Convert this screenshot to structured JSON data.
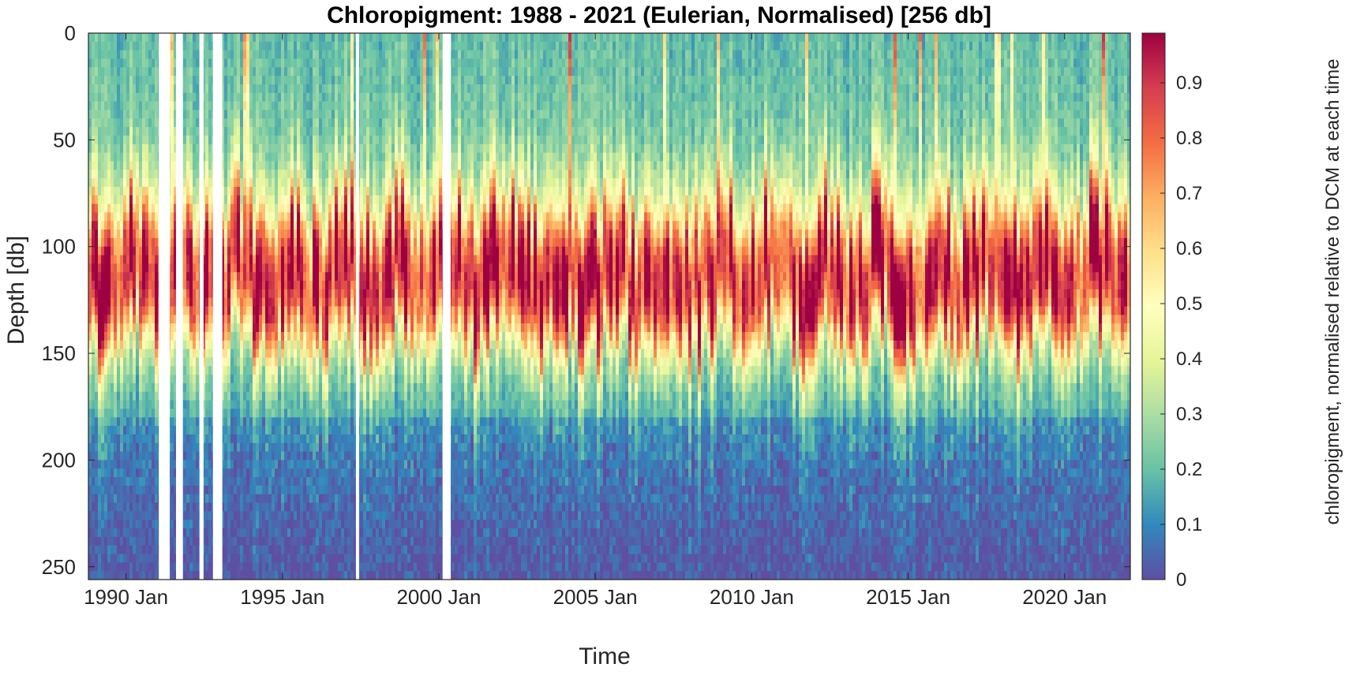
{
  "chart_data": {
    "type": "heatmap",
    "title": "Chloropigment: 1988 - 2021 (Eulerian, Normalised) [256 db]",
    "xlabel": "Time",
    "ylabel": "Depth [db]",
    "x_ticks": [
      "1990 Jan",
      "1995 Jan",
      "2000 Jan",
      "2005 Jan",
      "2010 Jan",
      "2015 Jan",
      "2020 Jan"
    ],
    "x_tick_years": [
      1990,
      1995,
      2000,
      2005,
      2010,
      2015,
      2020
    ],
    "xlim": [
      1988.8,
      2022.1
    ],
    "y_ticks": [
      0,
      50,
      100,
      150,
      200,
      250
    ],
    "ylim": [
      0,
      256
    ],
    "y_reversed": true,
    "colorbar": {
      "label": "chloropigment, normalised relative to DCM at each time",
      "ticks": [
        0,
        0.1,
        0.2,
        0.3,
        0.4,
        0.5,
        0.6,
        0.7,
        0.8,
        0.9
      ],
      "range": [
        0,
        0.99
      ],
      "colormap": [
        "#5e4fa2",
        "#3288bd",
        "#66c2a5",
        "#abdda4",
        "#e6f598",
        "#ffffbf",
        "#fee08b",
        "#fdae61",
        "#f46d43",
        "#d53e4f",
        "#9e0142"
      ]
    },
    "depth_profile": {
      "depths": [
        0,
        50,
        75,
        90,
        100,
        115,
        125,
        140,
        150,
        160,
        175,
        200,
        256
      ],
      "typical_values": [
        0.2,
        0.25,
        0.45,
        0.75,
        0.92,
        0.97,
        0.95,
        0.7,
        0.45,
        0.3,
        0.2,
        0.12,
        0.05
      ]
    },
    "dcm_depth_approx": 120,
    "data_gaps_years": [
      [
        1991.05,
        1991.4
      ],
      [
        1991.6,
        1991.82
      ],
      [
        1992.35,
        1992.48
      ],
      [
        1992.78,
        1993.08
      ],
      [
        1997.35,
        1997.45
      ],
      [
        2000.12,
        2000.38
      ]
    ]
  }
}
